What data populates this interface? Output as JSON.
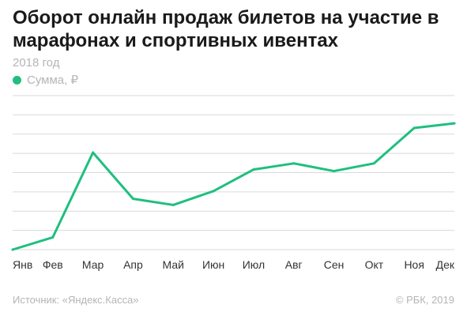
{
  "title": "Оборот онлайн продаж билетов на участие в марафонах и спортивных ивентах",
  "subtitle": "2018 год",
  "legend": {
    "label": "Сумма, ₽",
    "color": "#1fbf7f"
  },
  "footer": {
    "source": "Источник: «Яндекс.Касса»",
    "copyright": "© РБК, 2019"
  },
  "colors": {
    "line": "#1fbf7f",
    "grid": "#d9d9d9",
    "tick": "#333333"
  },
  "chart_data": {
    "type": "line",
    "categories": [
      "Янв",
      "Фев",
      "Мар",
      "Апр",
      "Май",
      "Июн",
      "Июл",
      "Авг",
      "Сен",
      "Окт",
      "Ноя",
      "Дек"
    ],
    "series": [
      {
        "name": "Сумма, ₽",
        "values": [
          0,
          8,
          63,
          33,
          29,
          38,
          52,
          56,
          51,
          56,
          79,
          82
        ]
      }
    ],
    "ylim": [
      0,
      100
    ],
    "grid": true,
    "y_tick_labels": false,
    "legend_position": "top-left"
  }
}
